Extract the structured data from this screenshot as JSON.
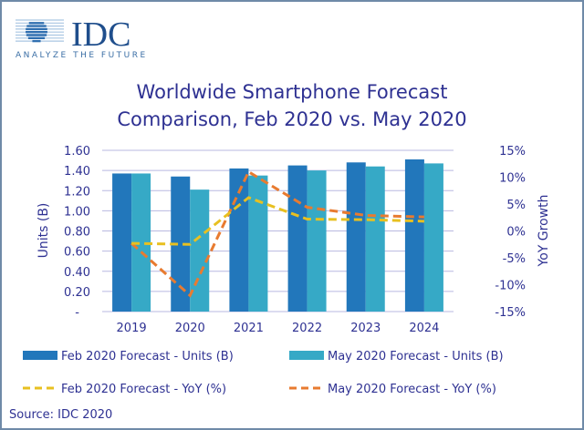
{
  "logo": {
    "name": "IDC",
    "tagline": "ANALYZE THE FUTURE"
  },
  "source": "Source: IDC 2020",
  "colors": {
    "feb_units": "#2277bb",
    "may_units": "#36a9c6",
    "feb_yoy": "#e8c020",
    "may_yoy": "#e87b30",
    "text": "#2e3192",
    "grid": "#b8b8e0"
  },
  "chart_data": {
    "type": "bar",
    "title": [
      "Worldwide Smartphone Forecast",
      "Comparison, Feb 2020 vs. May 2020"
    ],
    "categories": [
      "2019",
      "2020",
      "2021",
      "2022",
      "2023",
      "2024"
    ],
    "ylabel": "Units (B)",
    "y2label": "YoY Growth",
    "ylim": [
      0,
      1.6
    ],
    "y2lim": [
      -15,
      15
    ],
    "yticks": [
      "-",
      "0.20",
      "0.40",
      "0.60",
      "0.80",
      "1.00",
      "1.20",
      "1.40",
      "1.60"
    ],
    "y2ticks": [
      "-15%",
      "-10%",
      "-5%",
      "0%",
      "5%",
      "10%",
      "15%"
    ],
    "grid": true,
    "legend_position": "bottom",
    "series": [
      {
        "name": "Feb 2020 Forecast - Units (B)",
        "type": "bar",
        "axis": "left",
        "values": [
          1.37,
          1.34,
          1.42,
          1.45,
          1.48,
          1.51
        ]
      },
      {
        "name": "May 2020 Forecast - Units (B)",
        "type": "bar",
        "axis": "left",
        "values": [
          1.37,
          1.21,
          1.35,
          1.4,
          1.44,
          1.47
        ]
      },
      {
        "name": "Feb 2020 Forecast - YoY (%)",
        "type": "line",
        "axis": "right",
        "values": [
          -2.3,
          -2.5,
          6.2,
          2.2,
          2.1,
          1.8
        ]
      },
      {
        "name": "May 2020 Forecast - YoY (%)",
        "type": "line",
        "axis": "right",
        "values": [
          -2.3,
          -12.0,
          11.0,
          4.4,
          2.9,
          2.6
        ]
      }
    ]
  }
}
